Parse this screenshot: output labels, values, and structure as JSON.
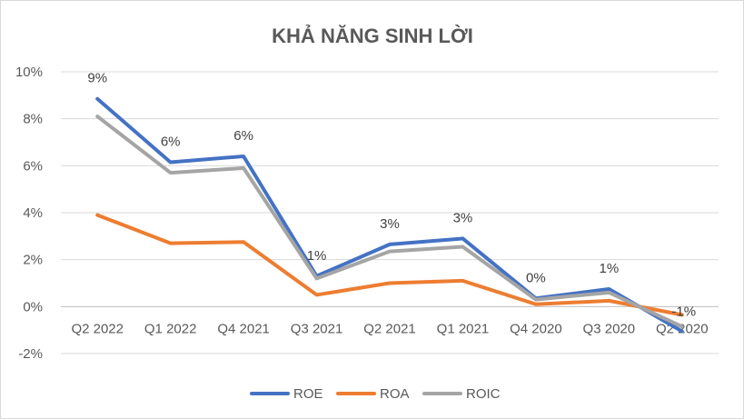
{
  "chart_data": {
    "type": "line",
    "title": "KHẢ NĂNG SINH LỜI",
    "xlabel": "",
    "ylabel": "",
    "categories": [
      "Q2 2022",
      "Q1 2022",
      "Q4 2021",
      "Q3 2021",
      "Q2 2021",
      "Q1 2021",
      "Q4 2020",
      "Q3 2020",
      "Q2 2020"
    ],
    "ylim": [
      -2,
      10
    ],
    "yticks": [
      -2,
      0,
      2,
      4,
      6,
      8,
      10
    ],
    "ytick_labels": [
      "-2%",
      "0%",
      "2%",
      "4%",
      "6%",
      "8%",
      "10%"
    ],
    "grid": true,
    "legend": "bottom",
    "series": [
      {
        "name": "ROE",
        "color": "#4472c4",
        "values": [
          8.85,
          6.15,
          6.4,
          1.3,
          2.65,
          2.9,
          0.35,
          0.75,
          -1.05
        ]
      },
      {
        "name": "ROA",
        "color": "#ed7d31",
        "values": [
          3.9,
          2.7,
          2.75,
          0.5,
          1.0,
          1.1,
          0.1,
          0.25,
          -0.35
        ]
      },
      {
        "name": "ROIC",
        "color": "#a5a5a5",
        "values": [
          8.1,
          5.7,
          5.9,
          1.2,
          2.35,
          2.55,
          0.3,
          0.6,
          -0.85
        ]
      }
    ],
    "data_labels": {
      "series": "ROE",
      "labels": [
        "9%",
        "6%",
        "6%",
        "1%",
        "3%",
        "3%",
        "0%",
        "1%",
        "-1%"
      ]
    }
  }
}
